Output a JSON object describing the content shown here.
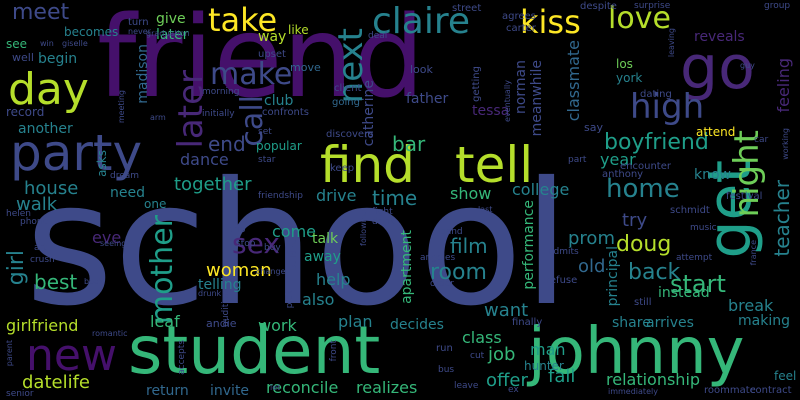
{
  "words": {
    "school": "school",
    "friend": "friend",
    "student": "student",
    "johnny": "johnny",
    "get": "get",
    "go": "go",
    "party": "party",
    "find": "find",
    "tell": "tell",
    "day": "day",
    "new": "new",
    "claire": "claire",
    "kiss": "kiss",
    "take": "take",
    "love": "love",
    "meet": "meet",
    "make": "make",
    "next": "next",
    "high": "high",
    "later": "later",
    "call": "call",
    "night": "night",
    "mother": "mother",
    "home": "home",
    "boyfriend": "boyfriend",
    "bar": "bar",
    "end": "end",
    "dance": "dance",
    "sex": "sex",
    "woman": "woman",
    "doug": "doug",
    "girl": "girl",
    "best": "best",
    "together": "together",
    "house": "house",
    "walk": "walk",
    "teacher": "teacher",
    "start": "start",
    "back": "back",
    "try": "try",
    "room": "room",
    "old": "old",
    "prom": "prom",
    "come": "come",
    "help": "help",
    "also": "also",
    "want": "want",
    "film": "film",
    "time": "time",
    "drive": "drive",
    "show": "show",
    "college": "college",
    "class": "class",
    "job": "job",
    "man": "man",
    "offer": "offer",
    "fall": "fall",
    "relationship": "relationship",
    "girlfriend": "girlfriend",
    "datelife": "datelife",
    "work": "work",
    "plan": "plan",
    "decides": "decides",
    "leaf": "leaf",
    "andie": "andie",
    "make_b": "make",
    "break": "break",
    "arrives": "arrives",
    "share": "share",
    "instead": "instead",
    "attend": "attend",
    "year": "year",
    "reconcile": "reconcile",
    "realizes": "realizes",
    "invite": "invite",
    "return": "return",
    "roommate": "roommate",
    "father": "father",
    "club": "club",
    "catherine": "catherine",
    "classmate": "classmate",
    "norman": "norman",
    "meanwhile": "meanwhile",
    "reveals": "reveals",
    "feeling": "feeling",
    "tessa": "tessa",
    "begin": "begin",
    "another": "another",
    "see": "see",
    "becomes": "becomes",
    "madison": "madison",
    "give": "give",
    "later2": "later",
    "way": "way",
    "like": "like",
    "popular": "popular",
    "performance": "performance",
    "apartment": "apartment",
    "principal": "principal",
    "eve": "eve",
    "talk": "talk",
    "away": "away",
    "one": "one",
    "need": "need",
    "asks": "asks",
    "telling": "telling",
    "york": "york",
    "los": "los",
    "festival": "festival",
    "know": "know",
    "feel": "feel",
    "making": "making",
    "record": "record",
    "hunter": "hunter",
    "anthony": "anthony",
    "schmidt": "schmidt",
    "upset": "upset",
    "move": "move",
    "going": "going",
    "look": "look",
    "dating": "dating",
    "say": "say",
    "encounter": "encounter",
    "turn": "turn",
    "street": "street",
    "despite": "despite",
    "surprise": "surprise",
    "group": "group",
    "help2": "help",
    "agrees": "agrees",
    "carter": "carter",
    "graduation": "graduation",
    "deal": "deal",
    "morning": "morning",
    "initially": "initially",
    "confronts": "confronts",
    "client": "client",
    "set": "set",
    "discovers": "discovers",
    "star": "star",
    "keep": "keep",
    "friendship": "friendship",
    "dream": "dream",
    "helen": "helen",
    "trip": "trip",
    "stop": "stop",
    "buy": "buy",
    "band": "band",
    "drink": "drink",
    "fight": "fight",
    "admits": "admits",
    "attempt": "attempt",
    "music": "music",
    "refuse": "refuse",
    "still": "still",
    "finally": "finally",
    "run": "run",
    "cut": "cut",
    "bus": "bus",
    "leave": "leave",
    "ex": "ex",
    "immediately": "immediately",
    "contract": "contract",
    "senior": "senior",
    "phone": "phone",
    "crush": "crush",
    "art": "art",
    "book": "book",
    "romantic": "romantic",
    "parent": "parent",
    "accepts": "accepts",
    "audition": "audition",
    "let": "let",
    "front": "front",
    "pick": "pick",
    "drunk": "drunk",
    "change": "change",
    "building": "building",
    "seeing": "seeing",
    "following": "following",
    "last": "last",
    "angeles": "angeles",
    "order": "order",
    "win": "win",
    "giselle": "giselle",
    "well": "well",
    "never": "never",
    "meeting": "meeting",
    "arm": "arm",
    "getting": "getting",
    "eventually": "eventually",
    "part": "part",
    "leaving": "leaving",
    "working": "working",
    "car": "car",
    "guy": "guy",
    "old2": "old",
    "france": "france"
  }
}
